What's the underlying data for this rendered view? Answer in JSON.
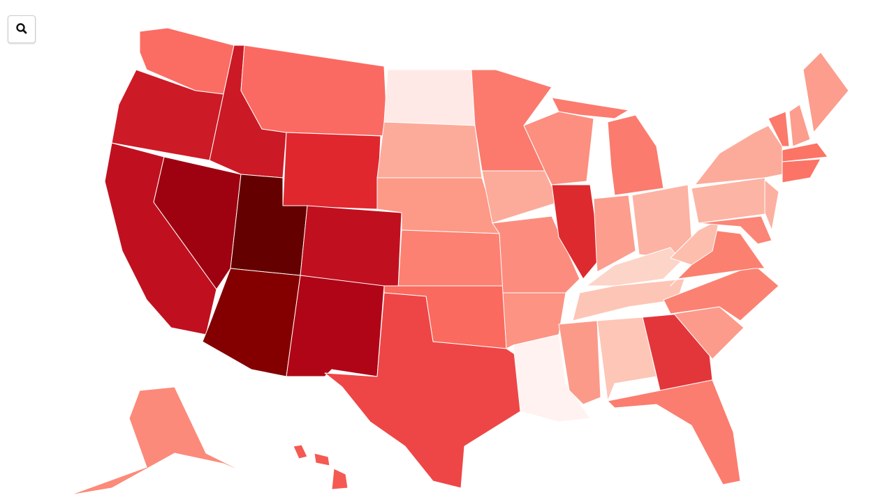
{
  "map": {
    "fills": [
      "#fb6c63",
      "#cc1b26",
      "#c0101f",
      "#9e0210",
      "#cb1a25",
      "#fb6a62",
      "#e0272e",
      "#650000",
      "#840000",
      "#c0101f",
      "#b00517",
      "#ffe9e6",
      "#fcab9b",
      "#fd9987",
      "#fc8172",
      "#fb6a5f",
      "#ee4646",
      "#fb7a6d",
      "#fcab9b",
      "#fc8d7e",
      "#fc9383",
      "#fff2f0",
      "#fc8f7f",
      "#dc2a2f",
      "#fb7b6e",
      "#fb7b6e",
      "#fc9d8d",
      "#fcb3a3",
      "#fdd4c8",
      "#fdc5b6",
      "#fc9a8a",
      "#fdc6b7",
      "#e3363b",
      "#fb7d70",
      "#fc9b8b",
      "#fb8272",
      "#fb8070",
      "#fdbeae",
      "#fcb4a4",
      "#fcab9b",
      "#fcb0a1",
      "#fb8576",
      "#fb7a6c",
      "#fc9d8d",
      "#fc9d8d",
      "#fb7466",
      "#fb7466",
      "#fc8a7a",
      "#f45a52",
      "#f45a52",
      "#f45a52"
    ]
  }
}
